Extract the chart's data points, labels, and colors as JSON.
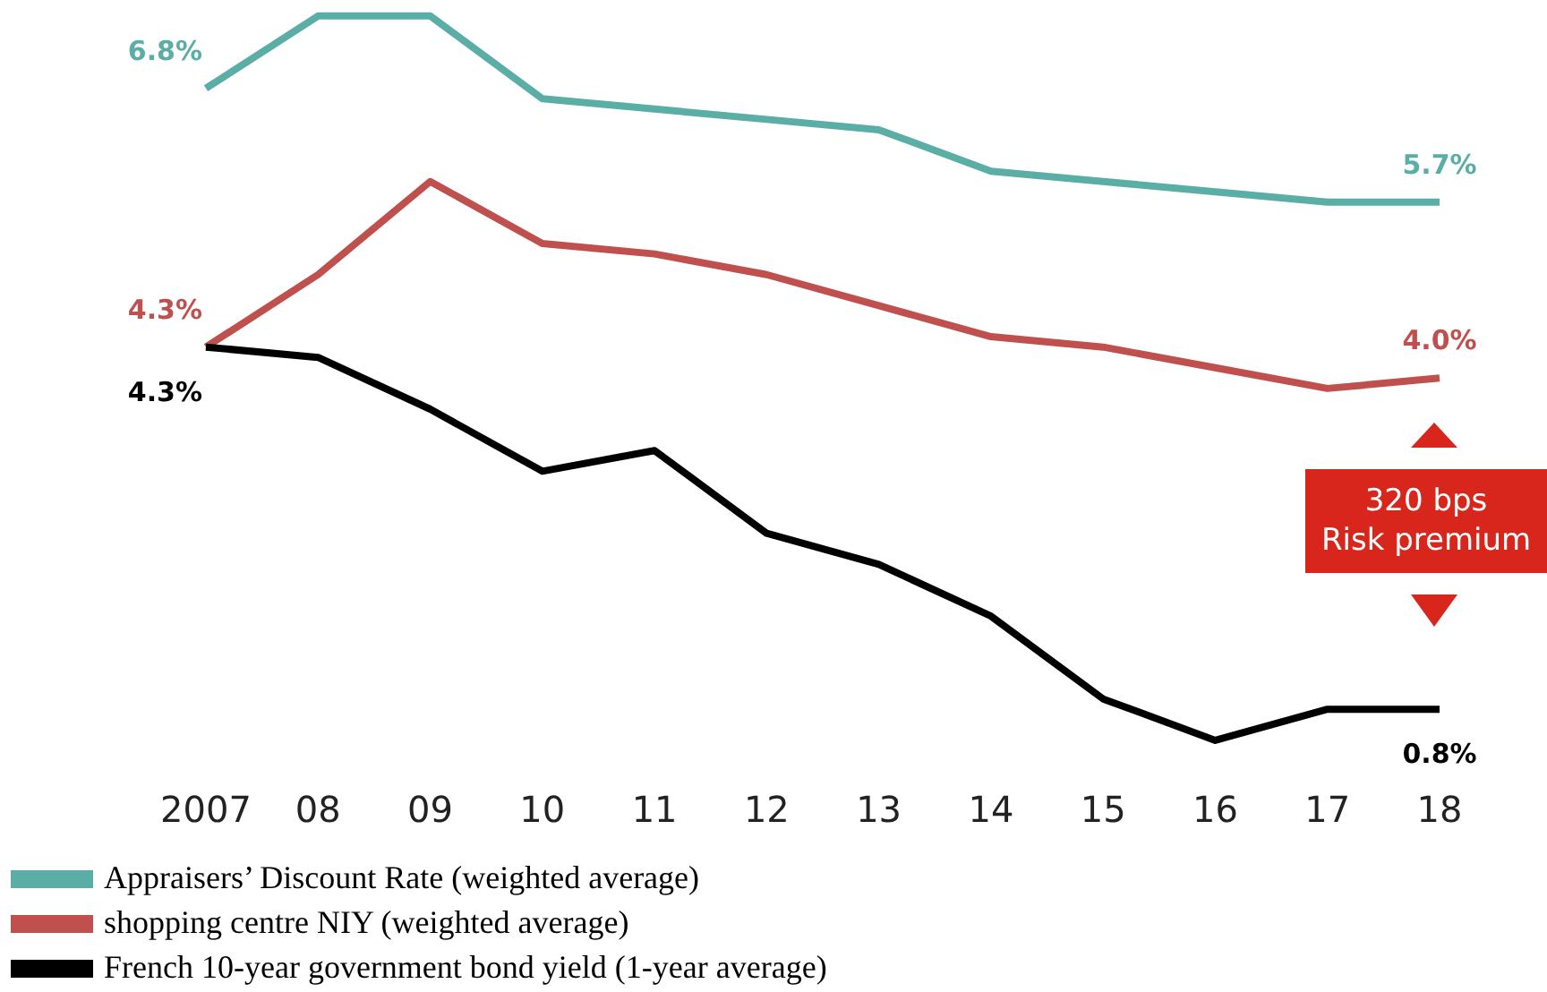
{
  "chart_data": {
    "type": "line",
    "categories": [
      "2007",
      "08",
      "09",
      "10",
      "11",
      "12",
      "13",
      "14",
      "15",
      "16",
      "17",
      "18"
    ],
    "tick_labels": "x",
    "legend": "bottom left",
    "marker": "none",
    "series": [
      {
        "name": "Appraisers’ Discount Rate (weighted average)",
        "color": "#5aaea6",
        "values": [
          6.8,
          7.5,
          7.5,
          6.7,
          6.6,
          6.5,
          6.4,
          6.0,
          5.9,
          5.8,
          5.7,
          5.7
        ],
        "value_labels": [
          "6.8%",
          null,
          null,
          null,
          null,
          null,
          null,
          null,
          null,
          null,
          null,
          "5.7%"
        ]
      },
      {
        "name": "shopping centre NIY (weighted average)",
        "color": "#c0504d",
        "values": [
          4.3,
          5.0,
          5.9,
          5.3,
          5.2,
          5.0,
          4.7,
          4.4,
          4.3,
          4.1,
          3.9,
          4.0
        ],
        "value_labels": [
          "4.3%",
          null,
          null,
          null,
          null,
          null,
          null,
          null,
          null,
          null,
          null,
          "4.0%"
        ]
      },
      {
        "name": "French 10-year government bond yield (1-year average)",
        "color": "#000000",
        "values": [
          4.3,
          4.2,
          3.7,
          3.1,
          3.3,
          2.5,
          2.2,
          1.7,
          0.9,
          0.5,
          0.8,
          0.8
        ],
        "value_labels": [
          "4.3%",
          null,
          null,
          null,
          null,
          null,
          null,
          null,
          null,
          null,
          null,
          "0.8%"
        ]
      }
    ],
    "annotations": [
      "320 bps\nRisk premium"
    ]
  }
}
